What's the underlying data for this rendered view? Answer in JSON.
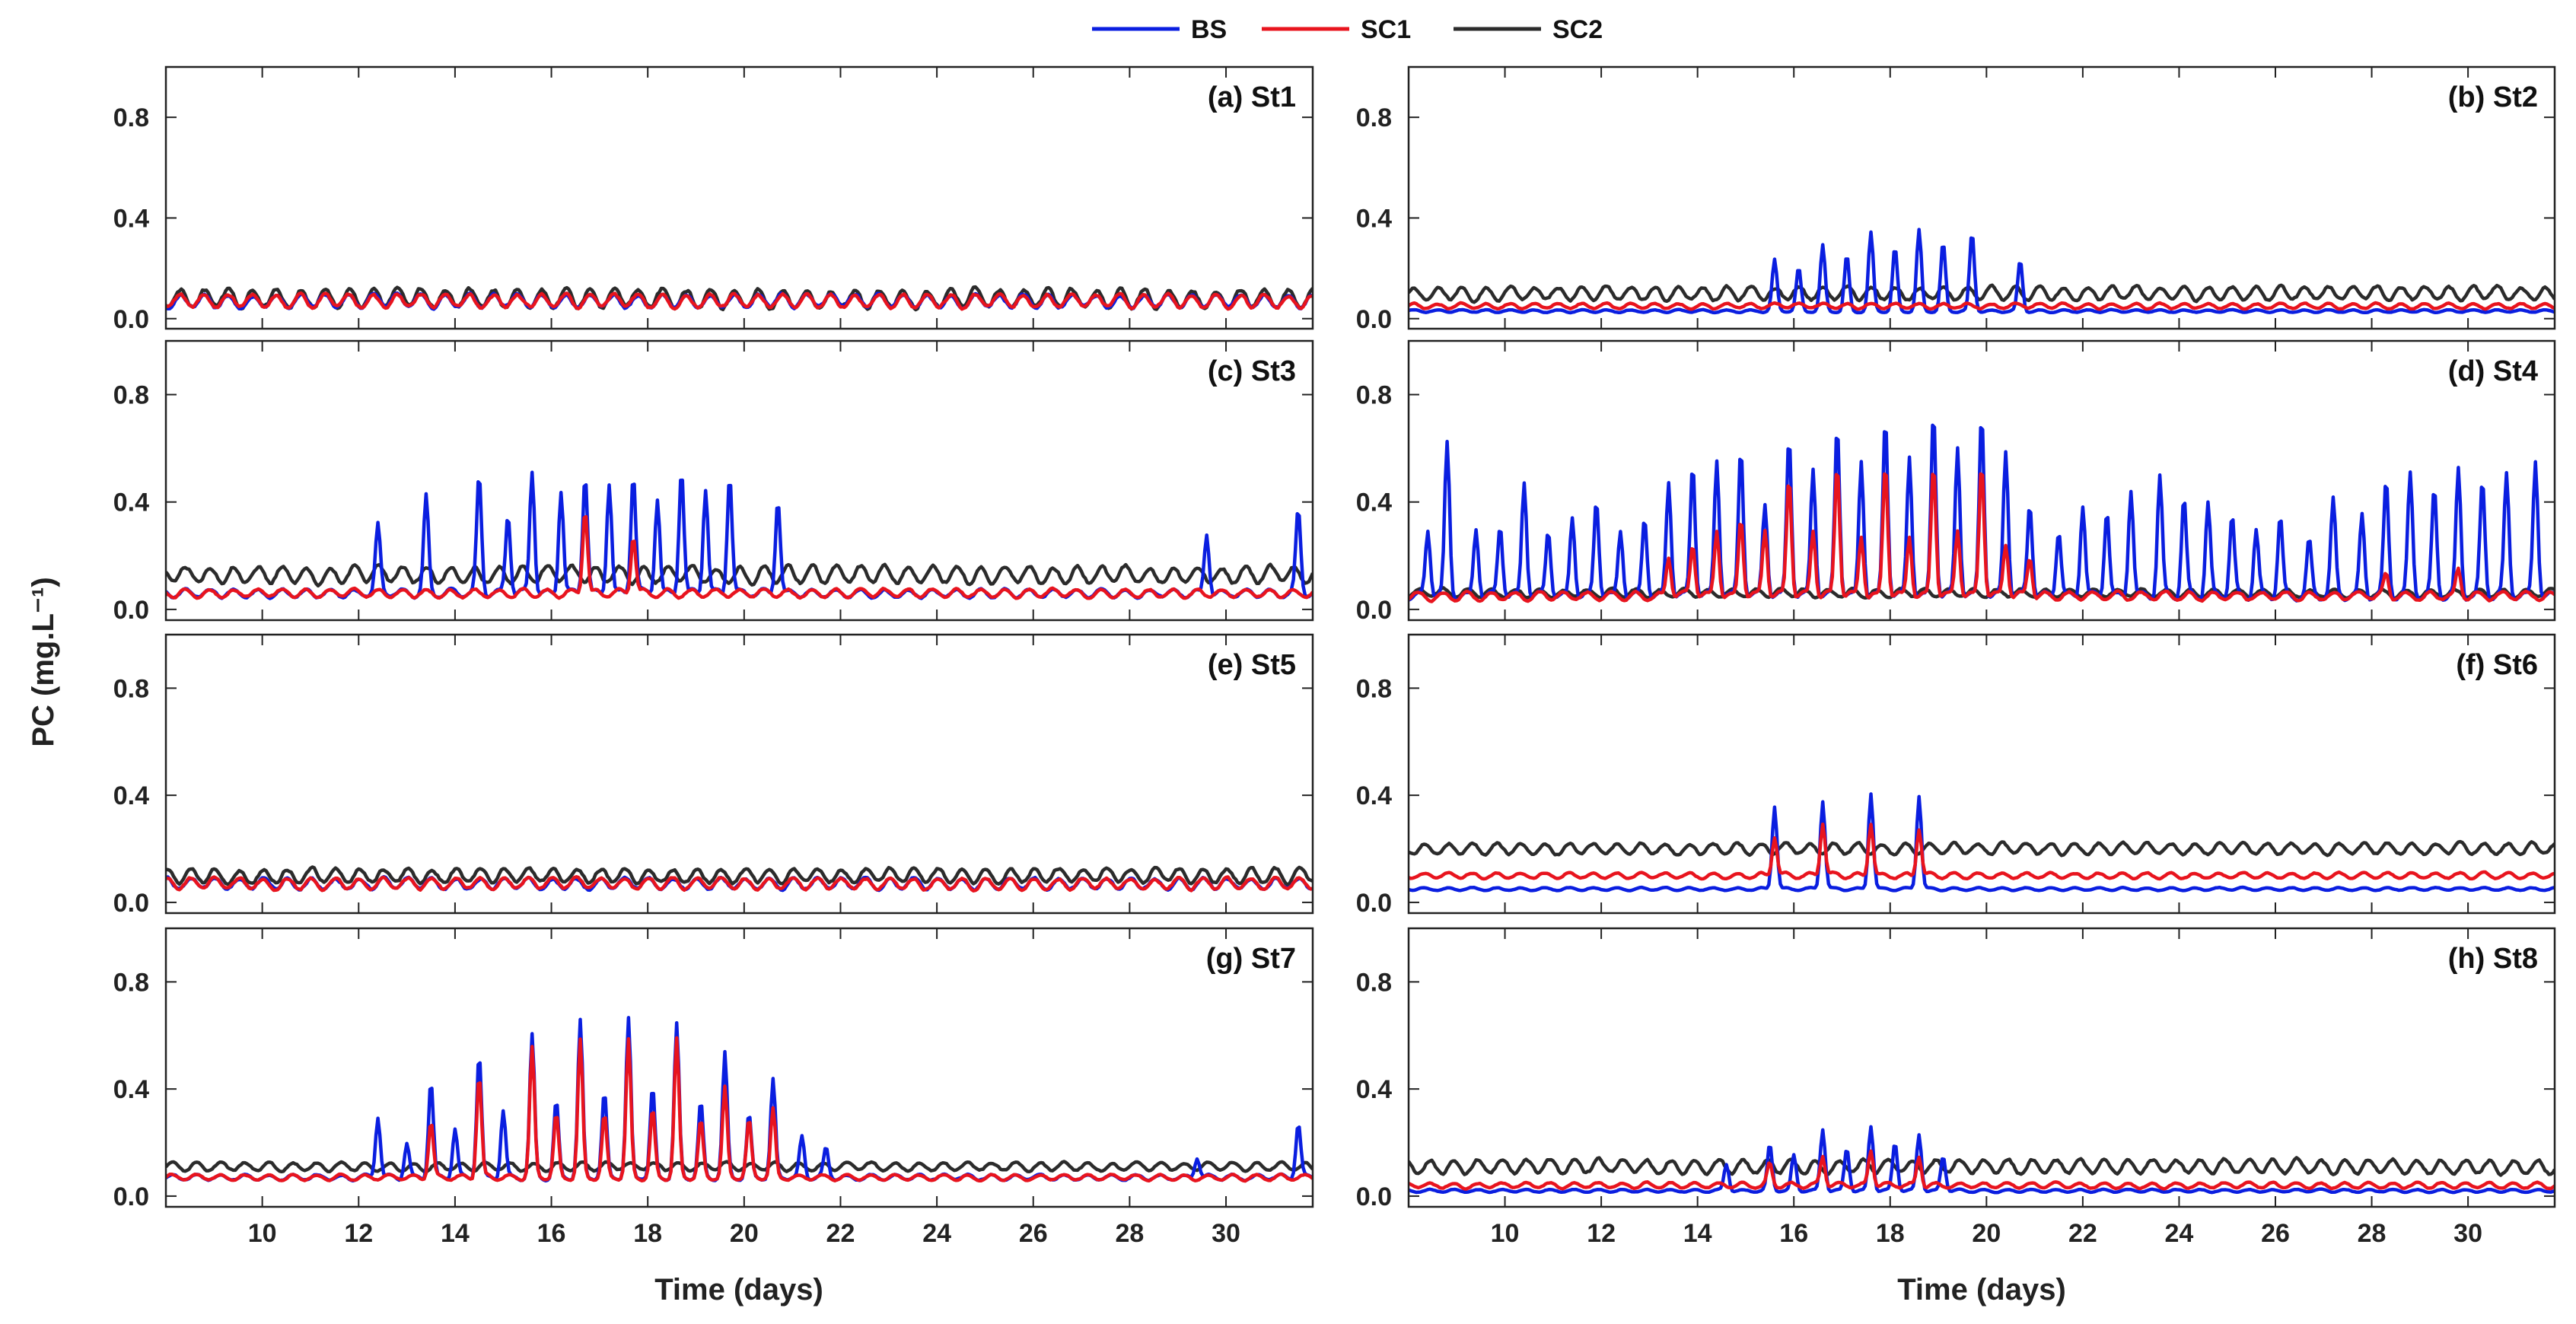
{
  "chart_data": {
    "type": "line",
    "legend": {
      "placement": "top-center",
      "entries": [
        {
          "name": "BS",
          "color": "#0a1ee0"
        },
        {
          "name": "SC1",
          "color": "#e8141e"
        },
        {
          "name": "SC2",
          "color": "#2b2b2b"
        }
      ]
    },
    "ylabel": "PC (mg.L⁻¹)",
    "xlabel": "Time (days)",
    "xlim": [
      8.0,
      31.8
    ],
    "ylim": [
      -0.04,
      1.0
    ],
    "xticks": [
      10,
      12,
      14,
      16,
      18,
      20,
      22,
      24,
      26,
      28,
      30
    ],
    "yticks": [
      0.0,
      0.4,
      0.8
    ],
    "ytick_labels": [
      "0.0",
      "0.4",
      "0.8"
    ],
    "panels": [
      {
        "label": "(a) St1",
        "series": [
          {
            "name": "BS",
            "base": 0.07,
            "amp": 0.05,
            "period": 0.5,
            "spikes": []
          },
          {
            "name": "SC1",
            "base": 0.07,
            "amp": 0.05,
            "period": 0.5,
            "spikes": []
          },
          {
            "name": "SC2",
            "base": 0.08,
            "amp": 0.07,
            "period": 0.5,
            "spikes": []
          }
        ]
      },
      {
        "label": "(b) St2",
        "series": [
          {
            "name": "BS",
            "base": 0.03,
            "amp": 0.01,
            "period": 0.5,
            "spikes": [
              [
                15.6,
                0.23
              ],
              [
                16.1,
                0.2
              ],
              [
                16.6,
                0.29
              ],
              [
                17.1,
                0.25
              ],
              [
                17.6,
                0.34
              ],
              [
                18.1,
                0.28
              ],
              [
                18.6,
                0.35
              ],
              [
                19.1,
                0.3
              ],
              [
                19.7,
                0.34
              ],
              [
                20.7,
                0.23
              ]
            ]
          },
          {
            "name": "SC1",
            "base": 0.05,
            "amp": 0.02,
            "period": 0.5,
            "spikes": []
          },
          {
            "name": "SC2",
            "base": 0.1,
            "amp": 0.05,
            "period": 0.5,
            "spikes": []
          }
        ]
      },
      {
        "label": "(c) St3",
        "series": [
          {
            "name": "BS",
            "base": 0.06,
            "amp": 0.03,
            "period": 0.5,
            "spikes": [
              [
                12.4,
                0.31
              ],
              [
                13.4,
                0.42
              ],
              [
                14.5,
                0.5
              ],
              [
                15.1,
                0.36
              ],
              [
                15.6,
                0.52
              ],
              [
                16.2,
                0.45
              ],
              [
                16.7,
                0.51
              ],
              [
                17.2,
                0.48
              ],
              [
                17.7,
                0.51
              ],
              [
                18.2,
                0.42
              ],
              [
                18.7,
                0.53
              ],
              [
                19.2,
                0.46
              ],
              [
                19.7,
                0.51
              ],
              [
                20.7,
                0.42
              ],
              [
                29.6,
                0.29
              ],
              [
                31.5,
                0.37
              ]
            ]
          },
          {
            "name": "SC1",
            "base": 0.06,
            "amp": 0.03,
            "period": 0.5,
            "spikes": [
              [
                16.7,
                0.38
              ],
              [
                17.7,
                0.28
              ]
            ]
          },
          {
            "name": "SC2",
            "base": 0.13,
            "amp": 0.06,
            "period": 0.5,
            "spikes": []
          }
        ]
      },
      {
        "label": "(d) St4",
        "series": [
          {
            "name": "BS",
            "base": 0.05,
            "amp": 0.03,
            "period": 0.5,
            "spikes": [
              [
                8.4,
                0.3
              ],
              [
                8.8,
                0.62
              ],
              [
                9.4,
                0.31
              ],
              [
                9.9,
                0.32
              ],
              [
                10.4,
                0.48
              ],
              [
                10.9,
                0.3
              ],
              [
                11.4,
                0.35
              ],
              [
                11.9,
                0.42
              ],
              [
                12.4,
                0.3
              ],
              [
                12.9,
                0.35
              ],
              [
                13.4,
                0.48
              ],
              [
                13.9,
                0.55
              ],
              [
                14.4,
                0.56
              ],
              [
                14.9,
                0.61
              ],
              [
                15.4,
                0.4
              ],
              [
                15.9,
                0.65
              ],
              [
                16.4,
                0.53
              ],
              [
                16.9,
                0.69
              ],
              [
                17.4,
                0.56
              ],
              [
                17.9,
                0.72
              ],
              [
                18.4,
                0.58
              ],
              [
                18.9,
                0.75
              ],
              [
                19.4,
                0.61
              ],
              [
                19.9,
                0.74
              ],
              [
                20.4,
                0.6
              ],
              [
                20.9,
                0.4
              ],
              [
                21.5,
                0.3
              ],
              [
                22.0,
                0.4
              ],
              [
                22.5,
                0.38
              ],
              [
                23.0,
                0.45
              ],
              [
                23.6,
                0.5
              ],
              [
                24.1,
                0.42
              ],
              [
                24.6,
                0.4
              ],
              [
                25.1,
                0.35
              ],
              [
                25.6,
                0.3
              ],
              [
                26.1,
                0.35
              ],
              [
                26.7,
                0.25
              ],
              [
                27.2,
                0.4
              ],
              [
                27.8,
                0.35
              ],
              [
                28.3,
                0.48
              ],
              [
                28.8,
                0.5
              ],
              [
                29.3,
                0.45
              ],
              [
                29.8,
                0.52
              ],
              [
                30.3,
                0.48
              ],
              [
                30.8,
                0.5
              ],
              [
                31.4,
                0.56
              ]
            ]
          },
          {
            "name": "SC1",
            "base": 0.05,
            "amp": 0.03,
            "period": 0.5,
            "spikes": [
              [
                13.4,
                0.2
              ],
              [
                13.9,
                0.25
              ],
              [
                14.4,
                0.3
              ],
              [
                14.9,
                0.35
              ],
              [
                15.4,
                0.3
              ],
              [
                15.9,
                0.5
              ],
              [
                16.4,
                0.3
              ],
              [
                16.9,
                0.55
              ],
              [
                17.4,
                0.28
              ],
              [
                17.9,
                0.55
              ],
              [
                18.4,
                0.28
              ],
              [
                18.9,
                0.55
              ],
              [
                19.4,
                0.3
              ],
              [
                19.9,
                0.55
              ],
              [
                20.4,
                0.25
              ],
              [
                20.9,
                0.2
              ],
              [
                28.3,
                0.13
              ],
              [
                29.8,
                0.15
              ]
            ]
          },
          {
            "name": "SC2",
            "base": 0.06,
            "amp": 0.03,
            "period": 0.5,
            "spikes": []
          }
        ]
      },
      {
        "label": "(e) St5",
        "series": [
          {
            "name": "BS",
            "base": 0.07,
            "amp": 0.04,
            "period": 0.5,
            "spikes": []
          },
          {
            "name": "SC1",
            "base": 0.07,
            "amp": 0.04,
            "period": 0.5,
            "spikes": []
          },
          {
            "name": "SC2",
            "base": 0.1,
            "amp": 0.05,
            "period": 0.5,
            "spikes": []
          }
        ]
      },
      {
        "label": "(f) St6",
        "series": [
          {
            "name": "BS",
            "base": 0.05,
            "amp": 0.01,
            "period": 0.5,
            "spikes": [
              [
                15.6,
                0.36
              ],
              [
                16.6,
                0.38
              ],
              [
                17.6,
                0.41
              ],
              [
                18.6,
                0.4
              ]
            ]
          },
          {
            "name": "SC1",
            "base": 0.1,
            "amp": 0.02,
            "period": 0.5,
            "spikes": [
              [
                15.6,
                0.25
              ],
              [
                16.6,
                0.3
              ],
              [
                17.6,
                0.3
              ],
              [
                18.6,
                0.28
              ]
            ]
          },
          {
            "name": "SC2",
            "base": 0.2,
            "amp": 0.04,
            "period": 0.5,
            "spikes": []
          }
        ]
      },
      {
        "label": "(g) St7",
        "series": [
          {
            "name": "BS",
            "base": 0.07,
            "amp": 0.02,
            "period": 0.5,
            "spikes": [
              [
                12.4,
                0.3
              ],
              [
                13.0,
                0.2
              ],
              [
                13.5,
                0.43
              ],
              [
                14.0,
                0.25
              ],
              [
                14.5,
                0.53
              ],
              [
                15.0,
                0.32
              ],
              [
                15.6,
                0.6
              ],
              [
                16.1,
                0.35
              ],
              [
                16.6,
                0.65
              ],
              [
                17.1,
                0.38
              ],
              [
                17.6,
                0.66
              ],
              [
                18.1,
                0.4
              ],
              [
                18.6,
                0.64
              ],
              [
                19.1,
                0.35
              ],
              [
                19.6,
                0.53
              ],
              [
                20.1,
                0.3
              ],
              [
                20.6,
                0.43
              ],
              [
                21.2,
                0.22
              ],
              [
                21.7,
                0.18
              ],
              [
                29.4,
                0.15
              ],
              [
                31.5,
                0.27
              ]
            ]
          },
          {
            "name": "SC1",
            "base": 0.07,
            "amp": 0.02,
            "period": 0.5,
            "spikes": [
              [
                13.5,
                0.28
              ],
              [
                14.5,
                0.45
              ],
              [
                15.6,
                0.55
              ],
              [
                16.1,
                0.3
              ],
              [
                16.6,
                0.58
              ],
              [
                17.1,
                0.3
              ],
              [
                17.6,
                0.58
              ],
              [
                18.1,
                0.32
              ],
              [
                18.6,
                0.58
              ],
              [
                19.1,
                0.28
              ],
              [
                19.6,
                0.4
              ],
              [
                20.1,
                0.28
              ],
              [
                20.6,
                0.32
              ]
            ]
          },
          {
            "name": "SC2",
            "base": 0.11,
            "amp": 0.03,
            "period": 0.5,
            "spikes": []
          }
        ]
      },
      {
        "label": "(h) St8",
        "series": [
          {
            "name": "BS",
            "base": 0.02,
            "amp": 0.01,
            "period": 0.5,
            "spikes": [
              [
                14.6,
                0.12
              ],
              [
                15.5,
                0.19
              ],
              [
                16.0,
                0.15
              ],
              [
                16.6,
                0.25
              ],
              [
                17.1,
                0.18
              ],
              [
                17.6,
                0.26
              ],
              [
                18.1,
                0.2
              ],
              [
                18.6,
                0.23
              ],
              [
                19.1,
                0.15
              ]
            ]
          },
          {
            "name": "SC1",
            "base": 0.04,
            "amp": 0.02,
            "period": 0.5,
            "spikes": [
              [
                15.5,
                0.12
              ],
              [
                16.6,
                0.15
              ],
              [
                17.6,
                0.17
              ],
              [
                18.6,
                0.15
              ]
            ]
          },
          {
            "name": "SC2",
            "base": 0.11,
            "amp": 0.05,
            "period": 0.5,
            "spikes": []
          }
        ]
      }
    ]
  }
}
